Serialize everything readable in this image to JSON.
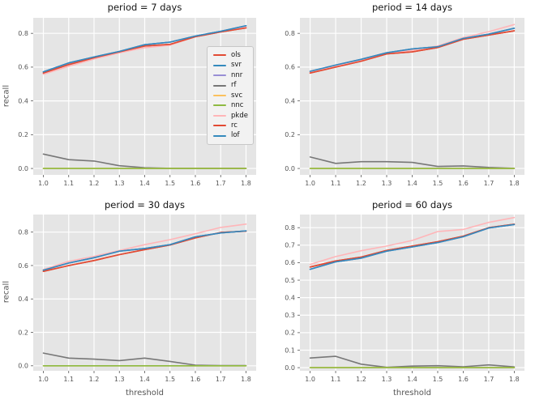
{
  "figure": {
    "background": "#ffffff",
    "axes_background": "#e5e5e5",
    "grid_color": "#ffffff",
    "tick_color": "#555555",
    "title_color": "#141414",
    "legend": {
      "background": "#f2f2f2",
      "border": "#c7c7c7",
      "entries": [
        {
          "label": "ols",
          "color": "#E24A33"
        },
        {
          "label": "svr",
          "color": "#348ABD"
        },
        {
          "label": "nnr",
          "color": "#988ED5"
        },
        {
          "label": "rf",
          "color": "#777777"
        },
        {
          "label": "svc",
          "color": "#FBC15E"
        },
        {
          "label": "nnc",
          "color": "#8EBA42"
        },
        {
          "label": "pkde",
          "color": "#FFB5B8"
        },
        {
          "label": "rc",
          "color": "#E24A33"
        },
        {
          "label": "lof",
          "color": "#348ABD"
        }
      ]
    }
  },
  "chart_data": [
    {
      "type": "line",
      "title": "period = 7 days",
      "xlabel": "",
      "ylabel": "recall",
      "x": [
        1.0,
        1.1,
        1.2,
        1.3,
        1.4,
        1.5,
        1.6,
        1.7,
        1.8
      ],
      "xtick_labels": [
        "1.0",
        "1.1",
        "1.2",
        "1.3",
        "1.4",
        "1.5",
        "1.6",
        "1.7",
        "1.8"
      ],
      "yticks": [
        0.0,
        0.2,
        0.4,
        0.6,
        0.8
      ],
      "ytick_labels": [
        "0.0",
        "0.2",
        "0.4",
        "0.6",
        "0.8"
      ],
      "xlim": [
        0.96,
        1.84
      ],
      "ylim": [
        -0.038,
        0.892
      ],
      "grid": true,
      "legend_position": "center right",
      "series": [
        {
          "name": "ols",
          "color": "#E24A33",
          "values": [
            0.565,
            0.615,
            0.655,
            0.69,
            0.725,
            0.735,
            0.78,
            0.808,
            0.832
          ]
        },
        {
          "name": "svr",
          "color": "#348ABD",
          "values": [
            0.572,
            0.625,
            0.66,
            0.693,
            0.733,
            0.748,
            0.784,
            0.812,
            0.845
          ]
        },
        {
          "name": "nnr",
          "color": "#988ED5",
          "values": [
            0.572,
            0.625,
            0.66,
            0.693,
            0.733,
            0.748,
            0.784,
            0.812,
            0.845
          ]
        },
        {
          "name": "rf",
          "color": "#777777",
          "values": [
            0.085,
            0.052,
            0.044,
            0.016,
            0.004,
            0.001,
            0.001,
            0.001,
            0.001
          ]
        },
        {
          "name": "svc",
          "color": "#FBC15E",
          "values": [
            0,
            0,
            0,
            0,
            0,
            0,
            0,
            0,
            0
          ]
        },
        {
          "name": "nnc",
          "color": "#8EBA42",
          "values": [
            0,
            0,
            0,
            0,
            0,
            0,
            0,
            0,
            0
          ]
        },
        {
          "name": "pkde",
          "color": "#FFB5B8",
          "values": [
            0.558,
            0.605,
            0.648,
            0.685,
            0.715,
            0.73,
            0.78,
            0.808,
            0.84
          ]
        },
        {
          "name": "rc",
          "color": "#E24A33",
          "values": [
            0.565,
            0.615,
            0.655,
            0.69,
            0.725,
            0.735,
            0.78,
            0.808,
            0.832
          ]
        },
        {
          "name": "lof",
          "color": "#348ABD",
          "values": [
            0.572,
            0.625,
            0.66,
            0.693,
            0.733,
            0.748,
            0.784,
            0.812,
            0.845
          ]
        }
      ]
    },
    {
      "type": "line",
      "title": "period = 14 days",
      "xlabel": "",
      "ylabel": "",
      "x": [
        1.0,
        1.1,
        1.2,
        1.3,
        1.4,
        1.5,
        1.6,
        1.7,
        1.8
      ],
      "xtick_labels": [
        "1.0",
        "1.1",
        "1.2",
        "1.3",
        "1.4",
        "1.5",
        "1.6",
        "1.7",
        "1.8"
      ],
      "yticks": [
        0.0,
        0.2,
        0.4,
        0.6,
        0.8
      ],
      "ytick_labels": [
        "0.0",
        "0.2",
        "0.4",
        "0.6",
        "0.8"
      ],
      "xlim": [
        0.96,
        1.84
      ],
      "ylim": [
        -0.038,
        0.892
      ],
      "grid": true,
      "series": [
        {
          "name": "ols",
          "color": "#E24A33",
          "values": [
            0.565,
            0.6,
            0.635,
            0.678,
            0.69,
            0.716,
            0.765,
            0.79,
            0.815
          ]
        },
        {
          "name": "svr",
          "color": "#348ABD",
          "values": [
            0.575,
            0.612,
            0.646,
            0.685,
            0.708,
            0.721,
            0.77,
            0.795,
            0.83
          ]
        },
        {
          "name": "nnr",
          "color": "#988ED5",
          "values": [
            0.575,
            0.612,
            0.646,
            0.685,
            0.708,
            0.721,
            0.77,
            0.795,
            0.83
          ]
        },
        {
          "name": "rf",
          "color": "#777777",
          "values": [
            0.068,
            0.03,
            0.04,
            0.04,
            0.036,
            0.012,
            0.015,
            0.006,
            0.001
          ]
        },
        {
          "name": "svc",
          "color": "#FBC15E",
          "values": [
            0,
            0,
            0,
            0,
            0,
            0,
            0,
            0,
            0
          ]
        },
        {
          "name": "nnc",
          "color": "#8EBA42",
          "values": [
            0,
            0,
            0,
            0,
            0,
            0,
            0,
            0,
            0
          ]
        },
        {
          "name": "pkde",
          "color": "#FFB5B8",
          "values": [
            0.57,
            0.607,
            0.64,
            0.682,
            0.7,
            0.725,
            0.775,
            0.81,
            0.852
          ]
        },
        {
          "name": "rc",
          "color": "#E24A33",
          "values": [
            0.565,
            0.6,
            0.635,
            0.678,
            0.69,
            0.716,
            0.765,
            0.79,
            0.815
          ]
        },
        {
          "name": "lof",
          "color": "#348ABD",
          "values": [
            0.575,
            0.612,
            0.646,
            0.685,
            0.708,
            0.721,
            0.77,
            0.795,
            0.83
          ]
        }
      ]
    },
    {
      "type": "line",
      "title": "period = 30 days",
      "xlabel": "threshold",
      "ylabel": "recall",
      "x": [
        1.0,
        1.1,
        1.2,
        1.3,
        1.4,
        1.5,
        1.6,
        1.7,
        1.8
      ],
      "xtick_labels": [
        "1.0",
        "1.1",
        "1.2",
        "1.3",
        "1.4",
        "1.5",
        "1.6",
        "1.7",
        "1.8"
      ],
      "yticks": [
        0.0,
        0.2,
        0.4,
        0.6,
        0.8
      ],
      "ytick_labels": [
        "0.0",
        "0.2",
        "0.4",
        "0.6",
        "0.8"
      ],
      "xlim": [
        0.96,
        1.84
      ],
      "ylim": [
        -0.03,
        0.905
      ],
      "grid": true,
      "series": [
        {
          "name": "ols",
          "color": "#E24A33",
          "values": [
            0.565,
            0.6,
            0.63,
            0.665,
            0.695,
            0.723,
            0.765,
            0.798,
            0.805
          ]
        },
        {
          "name": "svr",
          "color": "#348ABD",
          "values": [
            0.572,
            0.615,
            0.647,
            0.686,
            0.702,
            0.725,
            0.772,
            0.795,
            0.807
          ]
        },
        {
          "name": "nnr",
          "color": "#988ED5",
          "values": [
            0.572,
            0.615,
            0.647,
            0.686,
            0.702,
            0.725,
            0.772,
            0.795,
            0.807
          ]
        },
        {
          "name": "rf",
          "color": "#777777",
          "values": [
            0.076,
            0.046,
            0.04,
            0.031,
            0.046,
            0.026,
            0.004,
            0.001,
            0.001
          ]
        },
        {
          "name": "svc",
          "color": "#FBC15E",
          "values": [
            0,
            0,
            0,
            0,
            0,
            0,
            0,
            0,
            0
          ]
        },
        {
          "name": "nnc",
          "color": "#8EBA42",
          "values": [
            0,
            0,
            0,
            0,
            0,
            0,
            0,
            0,
            0
          ]
        },
        {
          "name": "pkde",
          "color": "#FFB5B8",
          "values": [
            0.576,
            0.625,
            0.655,
            0.69,
            0.725,
            0.755,
            0.79,
            0.828,
            0.848
          ]
        },
        {
          "name": "rc",
          "color": "#E24A33",
          "values": [
            0.565,
            0.6,
            0.63,
            0.665,
            0.695,
            0.723,
            0.765,
            0.798,
            0.805
          ]
        },
        {
          "name": "lof",
          "color": "#348ABD",
          "values": [
            0.572,
            0.615,
            0.647,
            0.686,
            0.702,
            0.725,
            0.772,
            0.795,
            0.807
          ]
        }
      ]
    },
    {
      "type": "line",
      "title": "period = 60 days",
      "xlabel": "threshold",
      "ylabel": "",
      "x": [
        1.0,
        1.1,
        1.2,
        1.3,
        1.4,
        1.5,
        1.6,
        1.7,
        1.8
      ],
      "xtick_labels": [
        "1.0",
        "1.1",
        "1.2",
        "1.3",
        "1.4",
        "1.5",
        "1.6",
        "1.7",
        "1.8"
      ],
      "yticks": [
        0.0,
        0.1,
        0.2,
        0.3,
        0.4,
        0.5,
        0.6,
        0.7,
        0.8
      ],
      "ytick_labels": [
        "0.0",
        "0.1",
        "0.2",
        "0.3",
        "0.4",
        "0.5",
        "0.6",
        "0.7",
        "0.8"
      ],
      "xlim": [
        0.96,
        1.84
      ],
      "ylim": [
        -0.018,
        0.875
      ],
      "grid": true,
      "series": [
        {
          "name": "ols",
          "color": "#E24A33",
          "values": [
            0.575,
            0.61,
            0.632,
            0.67,
            0.695,
            0.72,
            0.752,
            0.8,
            0.82
          ]
        },
        {
          "name": "svr",
          "color": "#348ABD",
          "values": [
            0.562,
            0.605,
            0.626,
            0.666,
            0.69,
            0.715,
            0.748,
            0.798,
            0.818
          ]
        },
        {
          "name": "nnr",
          "color": "#988ED5",
          "values": [
            0.562,
            0.605,
            0.626,
            0.666,
            0.69,
            0.715,
            0.748,
            0.798,
            0.818
          ]
        },
        {
          "name": "rf",
          "color": "#777777",
          "values": [
            0.055,
            0.065,
            0.02,
            0.002,
            0.009,
            0.011,
            0.005,
            0.016,
            0.004
          ]
        },
        {
          "name": "svc",
          "color": "#FBC15E",
          "values": [
            0,
            0,
            0,
            0,
            0,
            0,
            0,
            0,
            0
          ]
        },
        {
          "name": "nnc",
          "color": "#8EBA42",
          "values": [
            0,
            0,
            0,
            0,
            0,
            0,
            0,
            0,
            0
          ]
        },
        {
          "name": "pkde",
          "color": "#FFB5B8",
          "values": [
            0.59,
            0.635,
            0.668,
            0.695,
            0.727,
            0.778,
            0.79,
            0.83,
            0.858
          ]
        },
        {
          "name": "rc",
          "color": "#E24A33",
          "values": [
            0.575,
            0.61,
            0.632,
            0.67,
            0.695,
            0.72,
            0.752,
            0.8,
            0.82
          ]
        },
        {
          "name": "lof",
          "color": "#348ABD",
          "values": [
            0.562,
            0.605,
            0.626,
            0.666,
            0.69,
            0.715,
            0.748,
            0.798,
            0.818
          ]
        }
      ]
    }
  ]
}
